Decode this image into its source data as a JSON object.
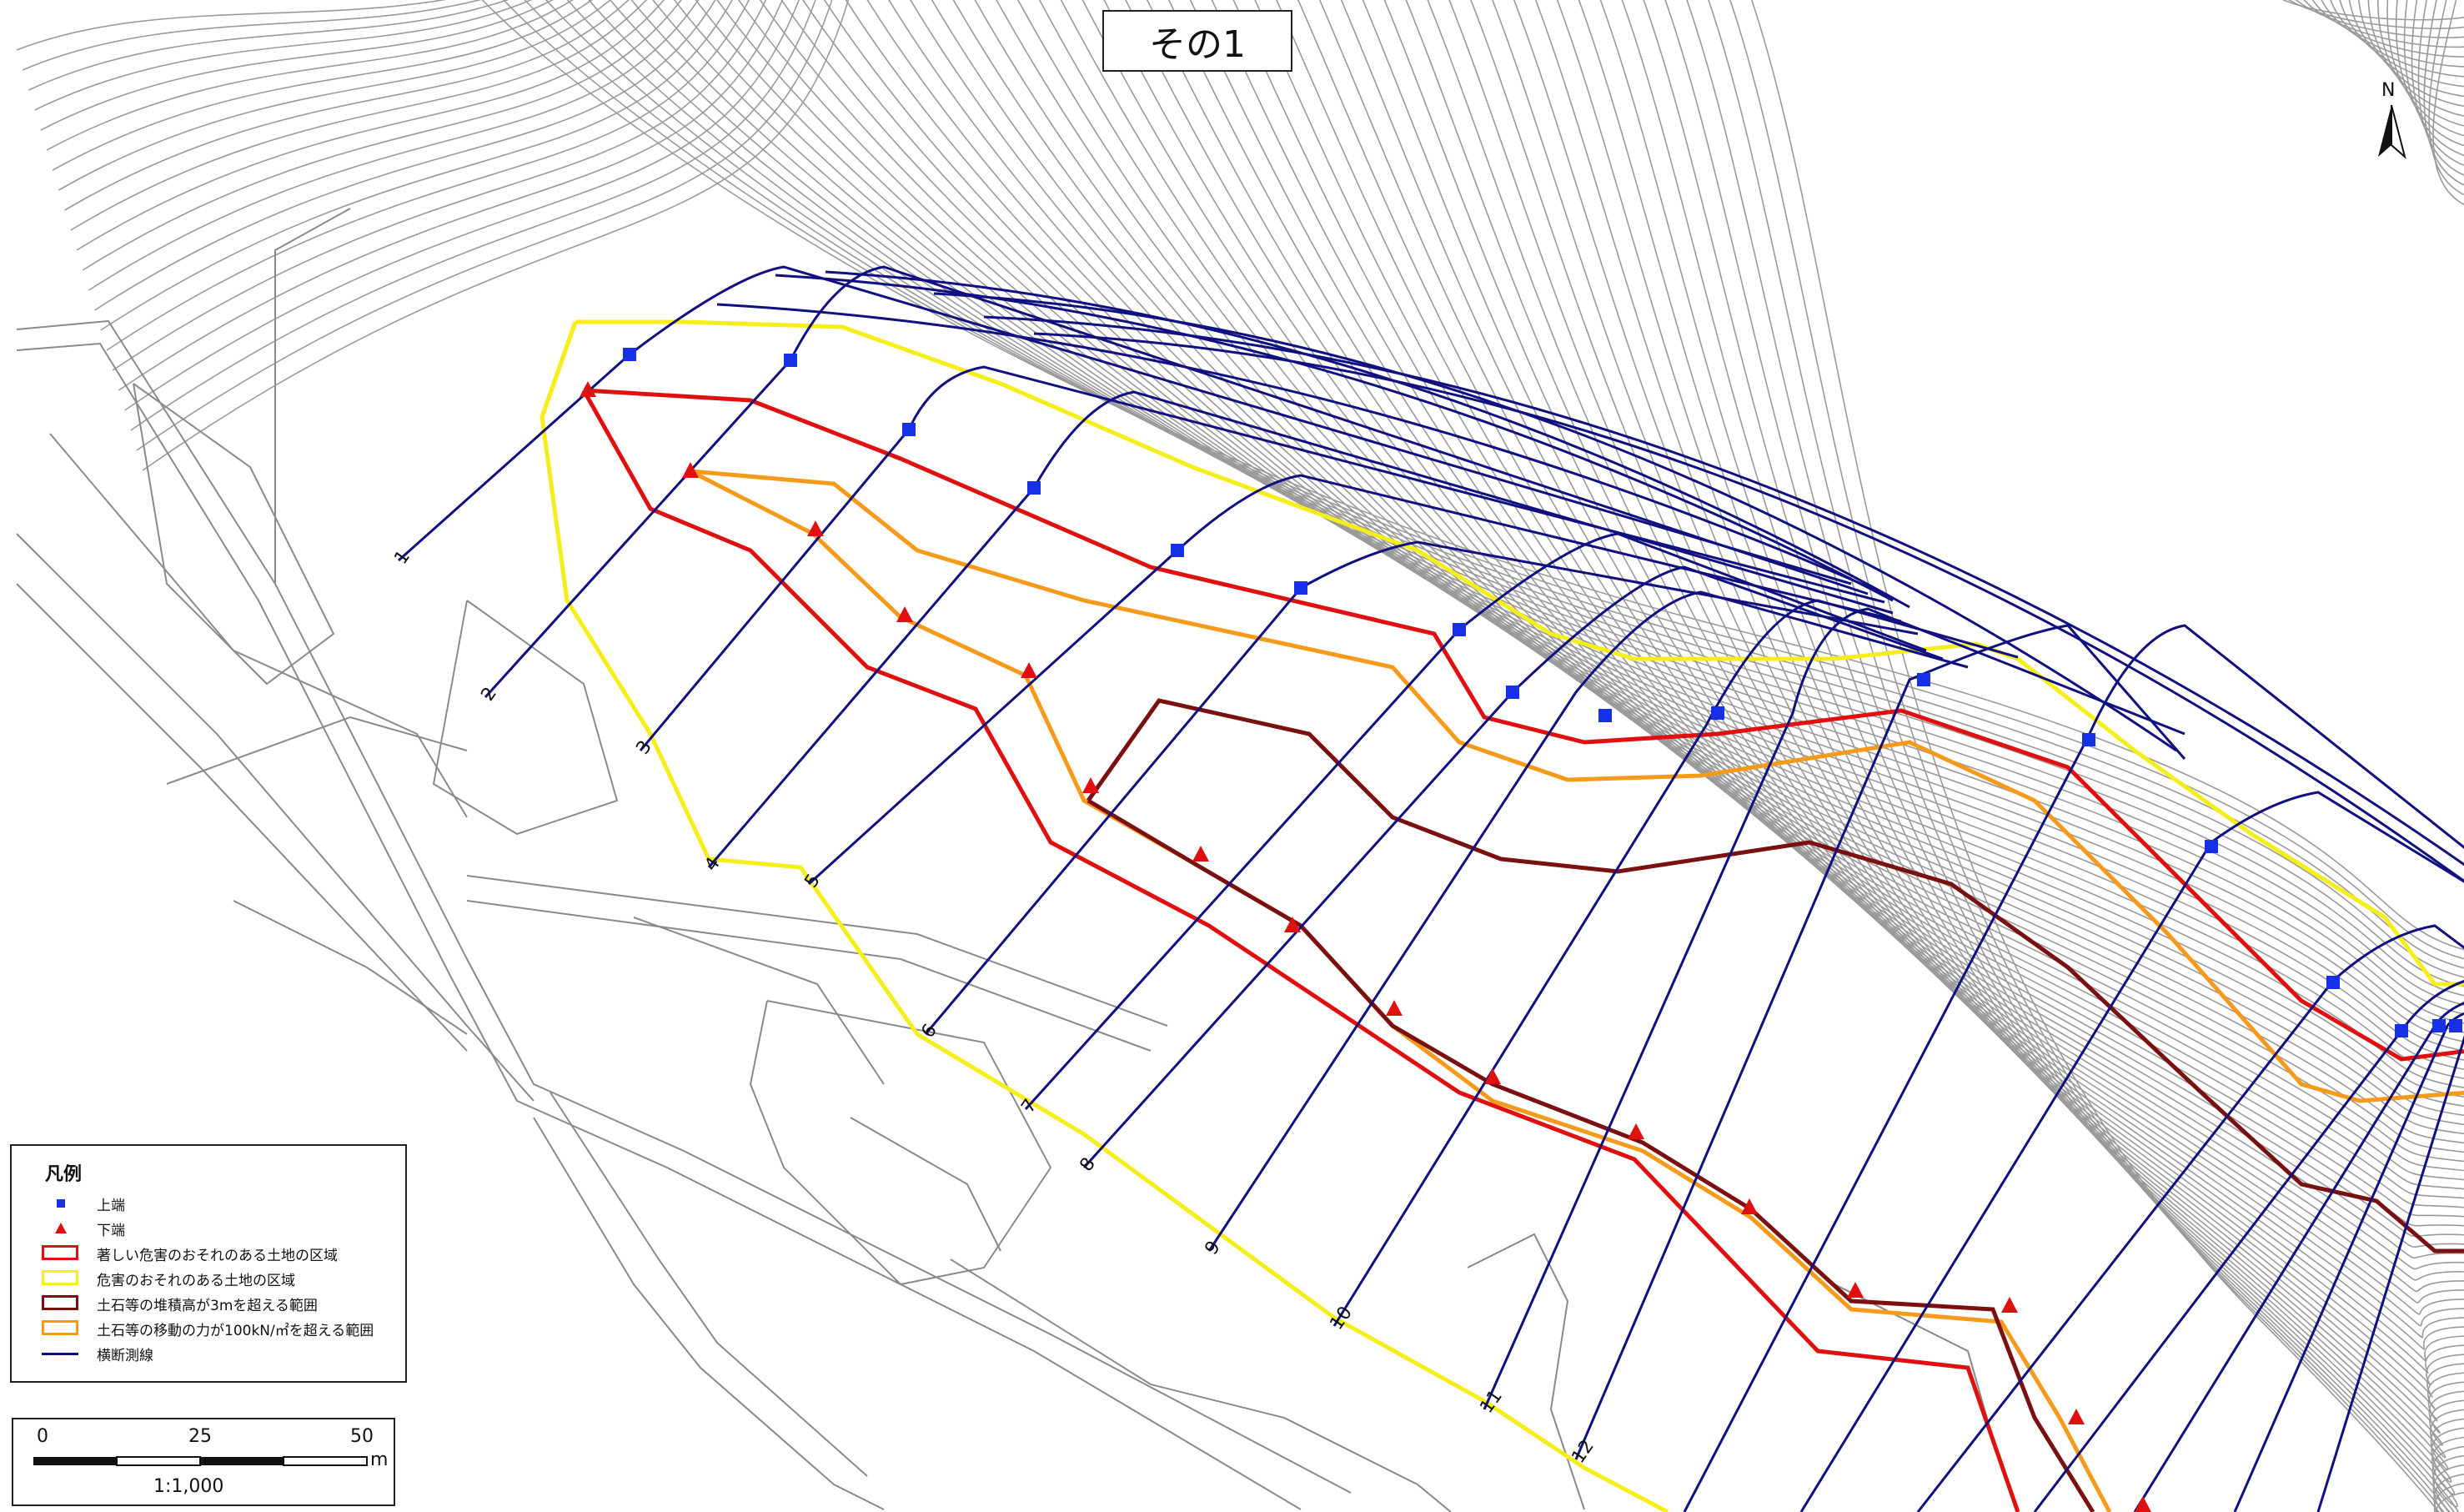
{
  "title": "その1",
  "north_label": "N",
  "legend": {
    "title": "凡例",
    "items": [
      {
        "label": "上端",
        "symbol": "blue-square-icon",
        "color": "#1530e6"
      },
      {
        "label": "下端",
        "symbol": "red-triangle-icon",
        "color": "#e01010"
      },
      {
        "label": "著しい危害のおそれのある土地の区域",
        "symbol": "red-outline-rect",
        "color": "#e01010"
      },
      {
        "label": "危害のおそれのある土地の区域",
        "symbol": "yellow-outline-rect",
        "color": "#f5ee1a"
      },
      {
        "label": "土石等の堆積高が3mを超える範囲",
        "symbol": "darkred-outline-rect",
        "color": "#7a1010"
      },
      {
        "label": "土石等の移動の力が100kN/㎡を超える範囲",
        "symbol": "orange-outline-rect",
        "color": "#f59a1a"
      },
      {
        "label": "横断測線",
        "symbol": "navy-line",
        "color": "#101080"
      }
    ]
  },
  "scale_bar": {
    "ticks": [
      "0",
      "25",
      "50"
    ],
    "unit": "m",
    "ratio": "1:1,000"
  },
  "section_labels": [
    "1",
    "2",
    "3",
    "4",
    "5",
    "6",
    "7",
    "8",
    "9",
    "10",
    "11",
    "12"
  ],
  "colors": {
    "contour": "#9a9a9a",
    "roads": "#8a8a8a",
    "section_lines": "#101080",
    "danger_red": "#e01010",
    "warning_yellow": "#f5ee1a",
    "deposit_darkred": "#7a1010",
    "force_orange": "#f59a1a",
    "top_marker": "#1530e6",
    "bottom_marker": "#e01010"
  }
}
